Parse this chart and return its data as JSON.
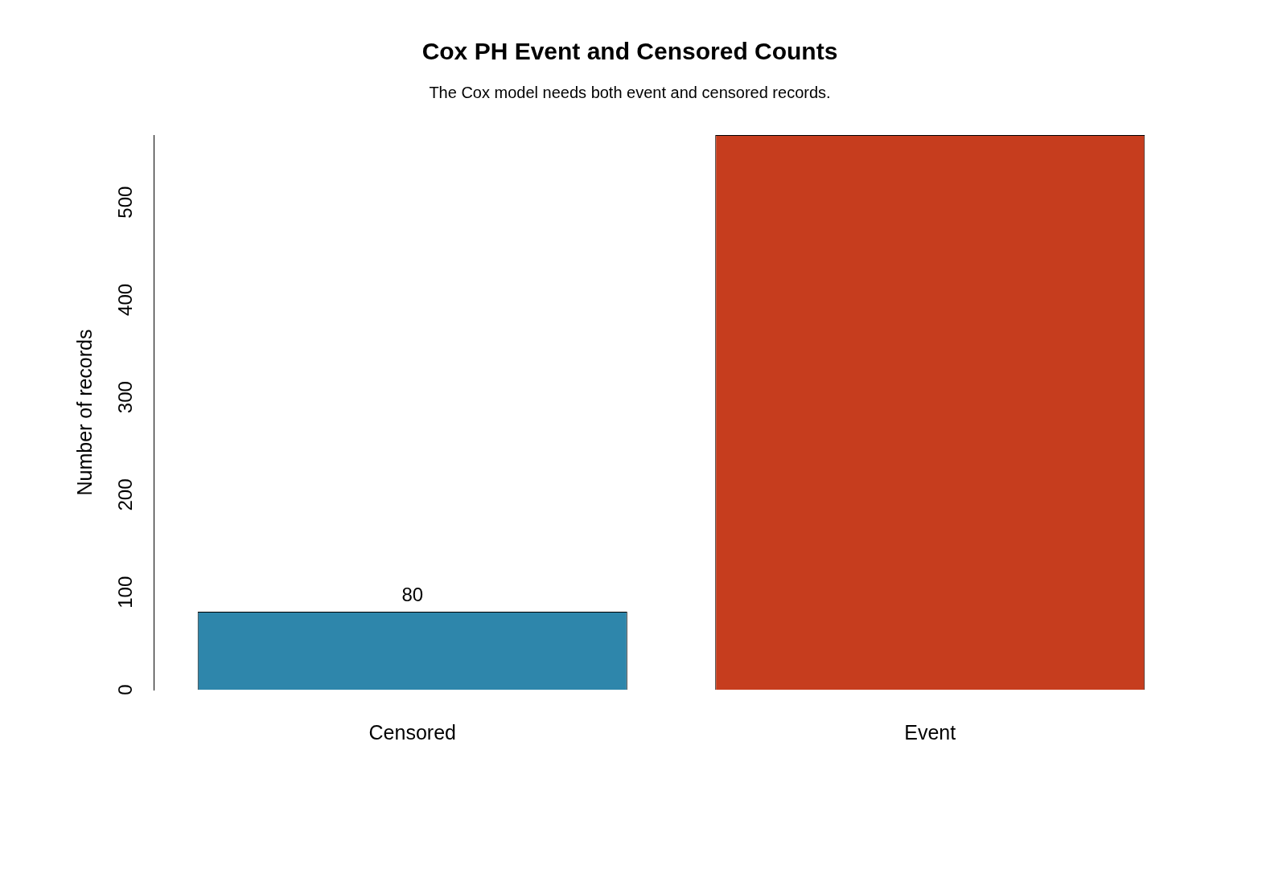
{
  "chart_data": {
    "type": "bar",
    "title": "Cox PH Event and Censored Counts",
    "subtitle": "The Cox model needs both event and censored records.",
    "ylabel": "Number of records",
    "categories": [
      "Censored",
      "Event"
    ],
    "values": [
      80,
      569
    ],
    "colors": [
      "#2e86ab",
      "#c63d1e"
    ],
    "value_labels": [
      "80",
      null
    ],
    "ylim": [
      0,
      569
    ],
    "yticks": [
      0,
      100,
      200,
      300,
      400,
      500
    ],
    "grid": false,
    "legend": false
  }
}
